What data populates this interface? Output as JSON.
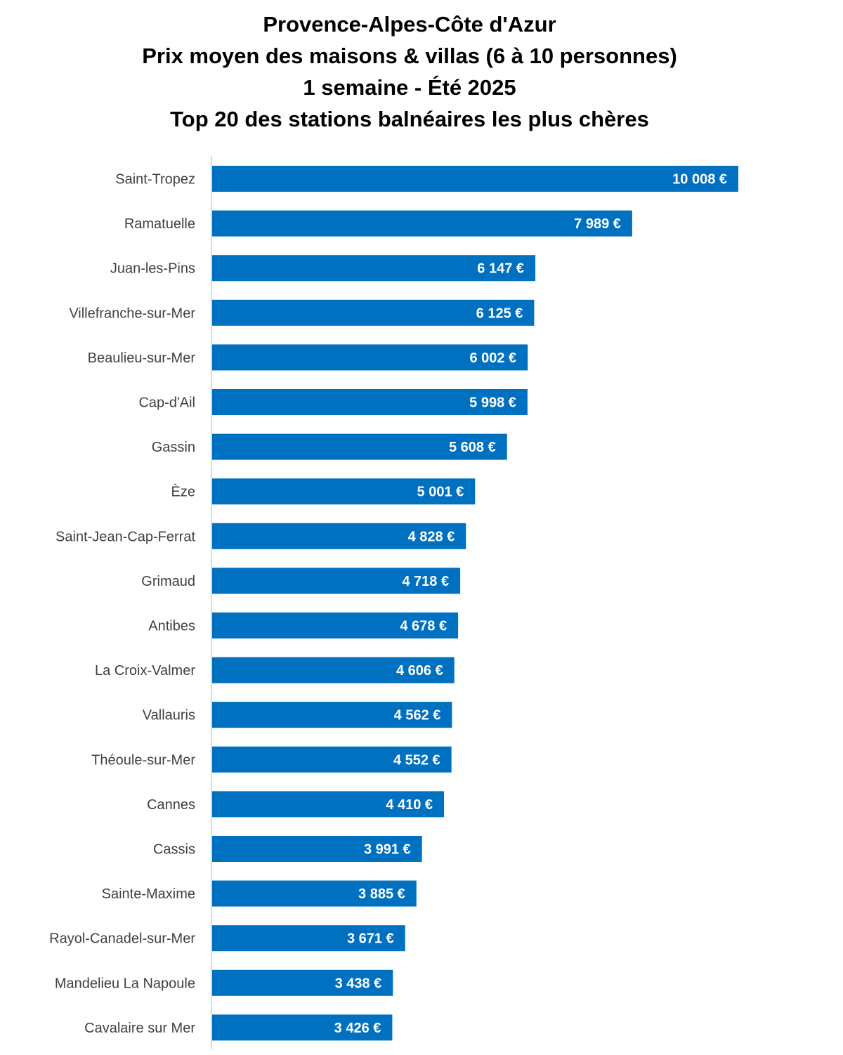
{
  "chart_data": {
    "type": "bar",
    "orientation": "horizontal",
    "title": [
      "Provence-Alpes-Côte d'Azur",
      "Prix moyen des maisons & villas (6 à 10 personnes)",
      "1 semaine - Été 2025",
      "Top 20 des stations balnéaires les plus chères"
    ],
    "categories": [
      "Saint-Tropez",
      "Ramatuelle",
      "Juan-les-Pins",
      "Villefranche-sur-Mer",
      "Beaulieu-sur-Mer",
      "Cap-d'Ail",
      "Gassin",
      "Èze",
      "Saint-Jean-Cap-Ferrat",
      "Grimaud",
      "Antibes",
      "La Croix-Valmer",
      "Vallauris",
      "Théoule-sur-Mer",
      "Cannes",
      "Cassis",
      "Sainte-Maxime",
      "Rayol-Canadel-sur-Mer",
      "Mandelieu La Napoule",
      "Cavalaire sur Mer"
    ],
    "values": [
      10008,
      7989,
      6147,
      6125,
      6002,
      5998,
      5608,
      5001,
      4828,
      4718,
      4678,
      4606,
      4562,
      4552,
      4410,
      3991,
      3885,
      3671,
      3438,
      3426
    ],
    "value_labels": [
      "10 008 €",
      "7 989 €",
      "6 147 €",
      "6 125 €",
      "6 002 €",
      "5 998 €",
      "5 608 €",
      "5 001 €",
      "4 828 €",
      "4 718 €",
      "4 678 €",
      "4 606 €",
      "4 562 €",
      "4 552 €",
      "4 410 €",
      "3 991 €",
      "3 885 €",
      "3 671 €",
      "3 438 €",
      "3 426 €"
    ],
    "xlim": [
      0,
      10008
    ],
    "grid": false,
    "legend": "none",
    "colors": {
      "bar": "#0070C0",
      "axis": "#D9D9D9",
      "category_text": "#404040",
      "value_text": "#FFFFFF"
    }
  }
}
